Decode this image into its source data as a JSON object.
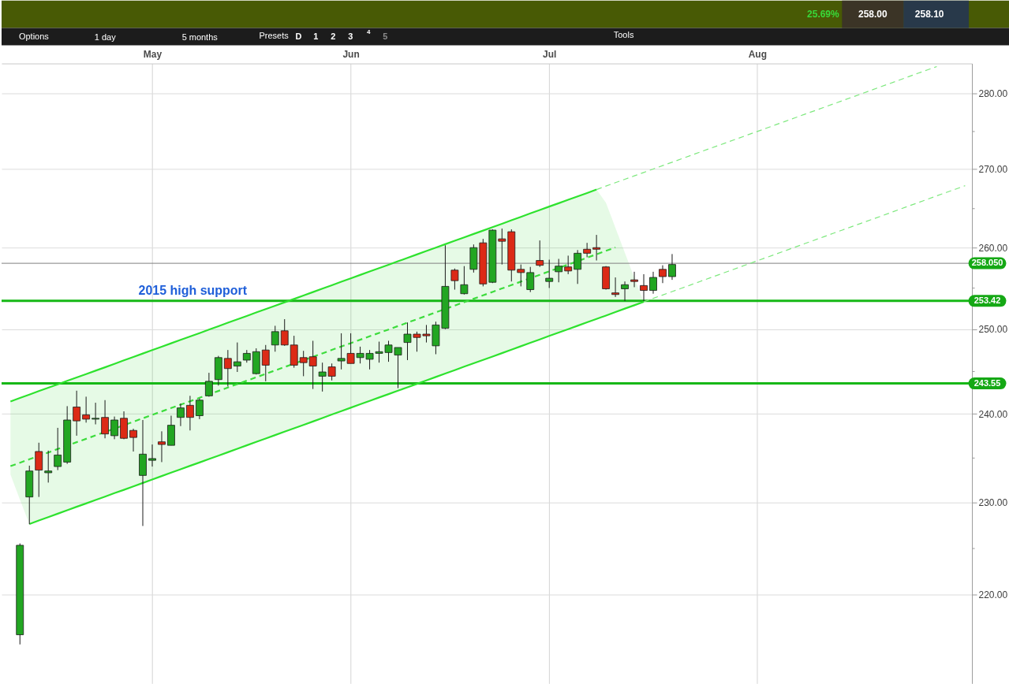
{
  "chart_data": {
    "type": "candlestick",
    "categories": [
      null,
      null,
      null,
      null,
      null,
      null,
      null,
      null,
      null,
      null,
      null,
      null,
      null,
      null,
      null,
      "May",
      null,
      null,
      null,
      null,
      null,
      null,
      null,
      null,
      null,
      null,
      null,
      null,
      null,
      null,
      null,
      null,
      null,
      null,
      null,
      null,
      "Jun",
      null,
      null,
      null,
      null,
      null,
      null,
      null,
      null,
      null,
      null,
      null,
      null,
      null,
      null,
      null,
      null,
      null,
      null,
      null,
      null,
      "Jul",
      null,
      null,
      null,
      null,
      null,
      null,
      null,
      null,
      null,
      null,
      null,
      null,
      null,
      null,
      null,
      null,
      null,
      null,
      null,
      null,
      null,
      "Aug",
      null,
      null,
      null,
      null,
      null,
      null,
      null,
      null,
      null,
      null,
      null,
      null,
      null,
      null,
      null,
      null,
      null,
      null,
      null,
      null,
      null,
      null
    ],
    "ohlc": [
      null,
      [
        215.8,
        225.5,
        214.8,
        225.3
      ],
      [
        230.6,
        234.1,
        227.6,
        233.5
      ],
      [
        235.7,
        236.7,
        230.6,
        233.6
      ],
      [
        233.3,
        235.8,
        232.2,
        233.5
      ],
      [
        234.0,
        238.4,
        233.6,
        235.3
      ],
      [
        234.5,
        240.9,
        234.3,
        239.3
      ],
      [
        240.8,
        242.7,
        237.5,
        239.2
      ],
      [
        239.9,
        242.0,
        239.0,
        239.4
      ],
      [
        239.4,
        241.3,
        238.8,
        239.5
      ],
      [
        239.6,
        241.6,
        237.2,
        237.7
      ],
      [
        237.5,
        239.7,
        237.1,
        239.3
      ],
      [
        239.5,
        240.3,
        237.1,
        237.2
      ],
      [
        238.1,
        238.3,
        235.7,
        237.3
      ],
      [
        233.0,
        239.3,
        227.4,
        235.4
      ],
      [
        234.7,
        236.5,
        234.0,
        234.9
      ],
      [
        236.8,
        238.0,
        234.5,
        236.5
      ],
      [
        236.4,
        239.8,
        236.4,
        238.7
      ],
      [
        239.6,
        241.2,
        238.6,
        240.7
      ],
      [
        241.0,
        242.1,
        238.1,
        239.6
      ],
      [
        239.8,
        241.8,
        239.4,
        241.6
      ],
      [
        242.1,
        244.8,
        242.0,
        243.8
      ],
      [
        244.0,
        246.8,
        243.3,
        246.6
      ],
      [
        246.5,
        247.5,
        243.2,
        245.3
      ],
      [
        245.6,
        248.4,
        244.9,
        246.1
      ],
      [
        246.3,
        247.5,
        246.0,
        247.1
      ],
      [
        244.7,
        247.7,
        244.6,
        247.3
      ],
      [
        247.5,
        248.1,
        243.8,
        245.7
      ],
      [
        248.1,
        250.4,
        247.3,
        249.7
      ],
      [
        249.8,
        251.2,
        248.0,
        248.1
      ],
      [
        248.1,
        249.2,
        245.4,
        245.7
      ],
      [
        246.6,
        247.4,
        244.4,
        246.0
      ],
      [
        246.7,
        248.6,
        242.9,
        245.6
      ],
      [
        244.4,
        246.0,
        242.6,
        244.9
      ],
      [
        245.5,
        245.9,
        243.9,
        244.4
      ],
      [
        246.2,
        249.5,
        245.2,
        246.5
      ],
      [
        247.1,
        249.5,
        245.9,
        245.9
      ],
      [
        246.6,
        247.9,
        245.9,
        247.1
      ],
      [
        246.4,
        247.5,
        245.2,
        247.1
      ],
      [
        247.1,
        248.5,
        246.0,
        247.3
      ],
      [
        247.2,
        248.6,
        246.1,
        248.1
      ],
      [
        246.9,
        247.8,
        243.0,
        247.8
      ],
      [
        248.4,
        250.8,
        246.3,
        249.4
      ],
      [
        249.4,
        249.7,
        247.3,
        249.0
      ],
      [
        249.4,
        250.5,
        248.4,
        249.2
      ],
      [
        248.0,
        250.9,
        247.0,
        250.5
      ],
      [
        250.1,
        260.3,
        250.0,
        255.2
      ],
      [
        257.2,
        257.4,
        254.8,
        255.9
      ],
      [
        254.3,
        257.7,
        254.2,
        255.4
      ],
      [
        257.3,
        260.4,
        256.9,
        260.0
      ],
      [
        260.6,
        261.1,
        255.2,
        255.5
      ],
      [
        255.7,
        262.3,
        255.6,
        262.2
      ],
      [
        261.1,
        262.4,
        257.9,
        260.8
      ],
      [
        262.0,
        262.3,
        255.8,
        257.2
      ],
      [
        257.3,
        257.9,
        255.2,
        256.9
      ],
      [
        254.8,
        257.6,
        254.5,
        256.9
      ],
      [
        258.4,
        260.9,
        257.6,
        257.8
      ],
      [
        255.8,
        258.5,
        255.0,
        256.2
      ],
      [
        257.0,
        258.6,
        255.7,
        257.7
      ],
      [
        257.6,
        259.0,
        256.7,
        257.1
      ],
      [
        257.3,
        259.7,
        255.5,
        259.3
      ],
      [
        259.8,
        260.6,
        258.8,
        259.3
      ],
      [
        260.0,
        261.6,
        258.4,
        259.8
      ],
      [
        257.6,
        257.7,
        254.8,
        254.9
      ],
      [
        254.4,
        256.3,
        253.9,
        254.2
      ],
      [
        254.9,
        255.8,
        253.4,
        255.4
      ],
      [
        256.0,
        257.0,
        255.1,
        255.8
      ],
      [
        255.3,
        256.7,
        253.4,
        254.7
      ],
      [
        254.7,
        257.0,
        254.3,
        256.3
      ],
      [
        257.3,
        257.8,
        255.6,
        256.4
      ],
      [
        256.4,
        259.2,
        256.0,
        257.9
      ],
      null,
      null,
      null,
      null,
      null,
      null,
      null,
      null,
      null,
      null,
      null,
      null,
      null,
      null,
      null,
      null,
      null,
      null,
      null,
      null,
      null,
      null,
      null,
      null,
      null,
      null,
      null,
      null,
      null,
      null,
      null
    ],
    "colors": [
      null,
      "#22a622",
      "#22a622",
      "#dc2a16",
      "#22a622",
      "#22a622",
      "#22a622",
      "#dc2a16",
      "#dc2a16",
      "#22a622",
      "#dc2a16",
      "#22a622",
      "#dc2a16",
      "#dc2a16",
      "#22a622",
      "#22a622",
      "#dc2a16",
      "#22a622",
      "#22a622",
      "#dc2a16",
      "#22a622",
      "#22a622",
      "#22a622",
      "#dc2a16",
      "#22a622",
      "#22a622",
      "#22a622",
      "#dc2a16",
      "#22a622",
      "#dc2a16",
      "#dc2a16",
      "#dc2a16",
      "#dc2a16",
      "#22a622",
      "#dc2a16",
      "#22a622",
      "#dc2a16",
      "#22a622",
      "#22a622",
      "#22a622",
      "#22a622",
      "#22a622",
      "#22a622",
      "#dc2a16",
      "#dc2a16",
      "#22a622",
      "#22a622",
      "#dc2a16",
      "#22a622",
      "#22a622",
      "#dc2a16",
      "#22a622",
      "#dc2a16",
      "#dc2a16",
      "#dc2a16",
      "#22a622",
      "#dc2a16",
      "#22a622",
      "#22a622",
      "#dc2a16",
      "#22a622",
      "#dc2a16",
      "#dc2a16",
      "#dc2a16",
      "#dc2a16",
      "#22a622",
      "#dc2a16",
      "#dc2a16",
      "#22a622",
      "#dc2a16",
      "#22a622",
      null,
      null,
      null,
      null,
      null,
      null,
      null,
      null,
      null,
      null,
      null,
      null,
      null,
      null,
      null,
      null,
      null,
      null,
      null,
      null,
      null,
      null,
      null,
      null,
      null,
      null,
      null,
      null,
      null,
      null,
      null
    ],
    "series": [
      {
        "type": "line",
        "color": "#2ee22e",
        "line_style": "solid",
        "values": [
          241.45,
          241.85,
          242.25,
          242.65,
          243.05,
          243.45,
          243.85,
          244.25,
          244.65,
          245.05,
          245.45,
          245.86,
          246.27,
          246.68,
          247.08,
          247.49,
          247.9,
          248.3,
          248.71,
          249.12,
          249.52,
          249.94,
          250.35,
          250.77,
          251.18,
          251.59,
          252.01,
          252.42,
          252.83,
          253.25,
          253.66,
          254.08,
          254.5,
          254.92,
          255.34,
          255.77,
          256.19,
          256.61,
          257.03,
          257.45,
          257.87,
          258.3,
          258.72,
          259.15,
          259.58,
          260.01,
          260.43,
          260.86,
          261.29,
          261.72,
          262.14,
          262.58,
          263.01,
          263.45,
          263.88,
          264.32,
          264.75,
          265.19,
          265.62,
          266.06,
          266.49,
          266.93,
          267.37,
          null,
          null,
          null,
          null,
          null,
          null,
          null,
          null,
          null,
          null,
          null,
          null,
          null,
          null,
          null,
          null,
          null,
          null,
          null,
          null,
          null,
          null,
          null,
          null,
          null,
          null,
          null,
          null,
          null,
          null,
          null,
          null,
          null,
          null,
          null,
          null,
          null,
          null,
          null
        ]
      },
      {
        "type": "line",
        "color": "#7ee87e",
        "line_style": "dashed",
        "values": [
          null,
          null,
          null,
          null,
          null,
          null,
          null,
          null,
          null,
          null,
          null,
          null,
          null,
          null,
          null,
          null,
          null,
          null,
          null,
          null,
          null,
          null,
          null,
          null,
          null,
          null,
          null,
          null,
          null,
          null,
          null,
          null,
          null,
          null,
          null,
          null,
          null,
          null,
          null,
          null,
          null,
          null,
          null,
          null,
          null,
          null,
          null,
          null,
          null,
          null,
          null,
          null,
          null,
          null,
          null,
          null,
          null,
          null,
          null,
          null,
          null,
          null,
          267.37,
          267.82,
          268.26,
          268.7,
          269.14,
          269.58,
          270.03,
          270.47,
          270.91,
          271.36,
          271.81,
          272.26,
          272.71,
          273.15,
          273.6,
          274.05,
          274.5,
          274.95,
          275.4,
          275.86,
          276.31,
          276.77,
          277.23,
          277.68,
          278.14,
          278.6,
          279.05,
          279.51,
          279.97,
          280.43,
          280.9,
          281.36,
          281.83,
          282.29,
          282.76,
          283.22,
          283.68,
          null,
          null,
          null
        ]
      },
      {
        "type": "line",
        "color": "#3ddc3d",
        "line_style": "dashed",
        "values": [
          234.04,
          234.43,
          234.82,
          null,
          235.59,
          235.98,
          null,
          236.76,
          237.14,
          237.53,
          null,
          238.31,
          null,
          239.1,
          239.5,
          239.89,
          240.29,
          240.68,
          241.08,
          241.47,
          241.87,
          null,
          242.67,
          243.07,
          243.47,
          243.87,
          244.27,
          244.68,
          245.08,
          245.48,
          null,
          246.29,
          246.69,
          247.1,
          247.51,
          247.92,
          248.32,
          248.73,
          249.14,
          249.55,
          249.95,
          250.37,
          250.78,
          251.2,
          251.61,
          252.03,
          null,
          252.85,
          253.27,
          253.68,
          254.1,
          254.52,
          254.94,
          255.36,
          255.78,
          null,
          256.63,
          257.05,
          257.47,
          257.89,
          258.31,
          258.74,
          259.17,
          259.6,
          260.03,
          null,
          null,
          null,
          null,
          null,
          null,
          null,
          null,
          null,
          null,
          null,
          null,
          null,
          null,
          null,
          null,
          null,
          null,
          null,
          null,
          null,
          null,
          null,
          null,
          null,
          null,
          null,
          null,
          null,
          null,
          null,
          null,
          null,
          null,
          null,
          null,
          null
        ],
        "lower": [
          233.09,
          230.31,
          227.62,
          228.0,
          228.37,
          228.75,
          229.13,
          229.51,
          229.88,
          230.26,
          230.64,
          231.02,
          231.39,
          231.78,
          232.16,
          232.55,
          232.93,
          233.31,
          233.7,
          234.08,
          234.46,
          234.85,
          235.23,
          235.62,
          236.01,
          236.4,
          236.79,
          237.18,
          237.57,
          237.96,
          238.35,
          238.74,
          239.13,
          239.53,
          239.93,
          240.32,
          240.72,
          241.12,
          241.51,
          241.91,
          242.3,
          242.7,
          243.1,
          243.5,
          243.9,
          244.31,
          244.71,
          245.11,
          245.52,
          245.92,
          246.32,
          246.72,
          247.13,
          247.54,
          247.95,
          248.36,
          248.77,
          249.18,
          249.59,
          250.0,
          250.41,
          250.82,
          251.23,
          251.64,
          252.06,
          252.48,
          252.89,
          253.31,
          null,
          null,
          null,
          null,
          null,
          null,
          null,
          null,
          null,
          null,
          null,
          null,
          null,
          null,
          null,
          null,
          null,
          null,
          null,
          null,
          null,
          null,
          null,
          null,
          null,
          null,
          null,
          null,
          null,
          null,
          null,
          null,
          null,
          null
        ],
        "upper": [
          241.45,
          241.85,
          242.25,
          242.65,
          243.05,
          243.45,
          243.85,
          244.25,
          244.65,
          245.05,
          245.45,
          245.86,
          246.27,
          246.68,
          247.08,
          247.49,
          247.9,
          248.3,
          248.71,
          249.12,
          249.52,
          249.94,
          250.35,
          250.77,
          251.18,
          251.59,
          252.01,
          252.42,
          252.83,
          253.25,
          253.66,
          254.08,
          254.5,
          254.92,
          255.34,
          255.77,
          256.19,
          256.61,
          257.03,
          257.45,
          257.87,
          258.3,
          258.72,
          259.15,
          259.58,
          260.01,
          260.43,
          260.86,
          261.29,
          261.72,
          262.14,
          262.58,
          263.01,
          263.45,
          263.88,
          264.32,
          264.75,
          265.19,
          265.62,
          266.06,
          266.49,
          266.93,
          267.37,
          265.68,
          262.5,
          259.36,
          256.25,
          253.31,
          null,
          null,
          null,
          null,
          null,
          null,
          null,
          null,
          null,
          null,
          null,
          null,
          null,
          null,
          null,
          null,
          null,
          null,
          null,
          null,
          null,
          null,
          null,
          null,
          null,
          null,
          null,
          null,
          null,
          null,
          null,
          null,
          null,
          null
        ]
      },
      {
        "type": "line",
        "color": "#2ee22e",
        "line_style": "solid",
        "values": [
          null,
          null,
          227.62,
          228.0,
          228.37,
          228.75,
          229.13,
          229.51,
          229.88,
          230.26,
          230.64,
          231.02,
          231.39,
          231.78,
          232.16,
          232.55,
          232.93,
          233.31,
          233.7,
          234.08,
          234.46,
          234.85,
          235.23,
          235.62,
          236.01,
          236.4,
          236.79,
          237.18,
          237.57,
          237.96,
          238.35,
          238.74,
          239.13,
          239.53,
          239.93,
          240.32,
          240.72,
          241.12,
          241.51,
          241.91,
          242.3,
          242.7,
          243.1,
          243.5,
          243.9,
          244.31,
          244.71,
          245.11,
          245.52,
          245.92,
          246.32,
          246.72,
          247.13,
          247.54,
          247.95,
          248.36,
          248.77,
          249.18,
          249.59,
          250.0,
          250.41,
          250.82,
          251.23,
          251.64,
          252.06,
          252.48,
          252.89,
          253.31,
          null,
          null,
          null,
          null,
          null,
          null,
          null,
          null,
          null,
          null,
          null,
          null,
          null,
          null,
          null,
          null,
          null,
          null,
          null,
          null,
          null,
          null,
          null,
          null,
          null,
          null,
          null,
          null,
          null,
          null,
          null,
          null,
          null,
          null
        ]
      },
      {
        "type": "line",
        "color": "#7ee87e",
        "line_style": "dashed",
        "values": [
          null,
          null,
          null,
          null,
          null,
          null,
          null,
          null,
          null,
          null,
          null,
          null,
          null,
          null,
          null,
          null,
          null,
          null,
          null,
          null,
          null,
          null,
          null,
          null,
          null,
          null,
          null,
          null,
          null,
          null,
          null,
          null,
          null,
          null,
          null,
          null,
          null,
          null,
          null,
          null,
          null,
          null,
          null,
          null,
          null,
          null,
          null,
          null,
          null,
          null,
          null,
          null,
          null,
          null,
          null,
          null,
          null,
          null,
          null,
          null,
          null,
          null,
          null,
          null,
          null,
          null,
          null,
          253.31,
          253.73,
          254.14,
          254.56,
          254.97,
          255.39,
          255.82,
          256.24,
          256.66,
          257.09,
          257.51,
          257.93,
          258.36,
          258.78,
          259.2,
          259.63,
          260.06,
          260.49,
          260.92,
          261.35,
          261.78,
          262.21,
          262.64,
          263.07,
          263.5,
          263.93,
          264.37,
          264.81,
          265.25,
          265.68,
          266.12,
          266.56,
          267.0,
          267.43,
          267.87
        ]
      }
    ],
    "log": "y",
    "grid": true,
    "ylim": [
      210.8,
      284.1
    ],
    "yticks": [
      {
        "value": 220,
        "label": "220.00"
      },
      {
        "value": 225,
        "label": null
      },
      {
        "value": 230,
        "label": "230.00"
      },
      {
        "value": 235,
        "label": null
      },
      {
        "value": 240,
        "label": "240.00"
      },
      {
        "value": 245,
        "label": null
      },
      {
        "value": 250,
        "label": "250.00"
      },
      {
        "value": 255,
        "label": null
      },
      {
        "value": 260,
        "label": "260.00"
      },
      {
        "value": 265,
        "label": null
      },
      {
        "value": 270,
        "label": "270.00"
      },
      {
        "value": 275,
        "label": null
      },
      {
        "value": 280,
        "label": "280.00"
      }
    ],
    "ref_lines": [
      {
        "axis": "y",
        "value": 258.05,
        "label": "258.050",
        "color": "#808080"
      },
      {
        "axis": "y",
        "value": 253.42,
        "label": "253.42",
        "color": "#16b816"
      },
      {
        "axis": "y",
        "value": 243.55,
        "label": "243.55",
        "color": "#16b816"
      }
    ],
    "annotations": [
      {
        "text": "2015 high support",
        "y": 253.42
      },
      "25.69%",
      "258.00",
      "258.10",
      "Options",
      "1 day",
      "5 months",
      "Presets",
      "D",
      "1",
      "2",
      "3",
      "4",
      "5",
      "Tools"
    ]
  }
}
